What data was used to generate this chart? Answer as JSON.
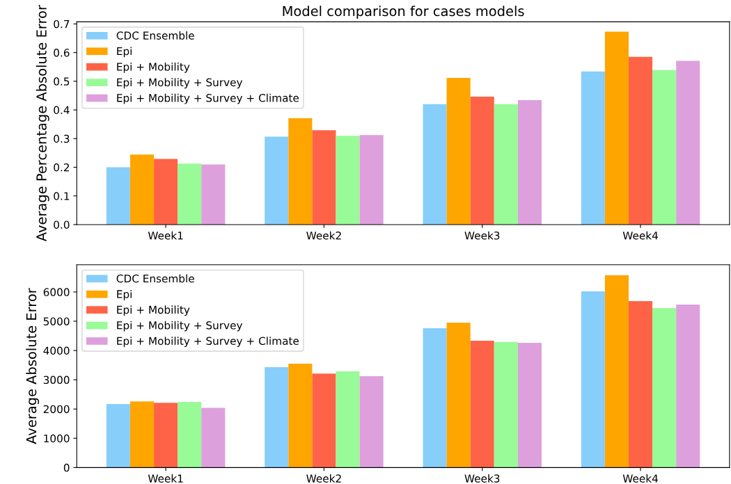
{
  "chart_data": [
    {
      "type": "bar",
      "title": "Model comparison for cases models",
      "ylabel": "Average Percentage Absolute Error",
      "categories": [
        "Week1",
        "Week2",
        "Week3",
        "Week4"
      ],
      "series": [
        {
          "name": "CDC Ensemble",
          "color": "#87cefa",
          "values": [
            0.2,
            0.307,
            0.42,
            0.534
          ]
        },
        {
          "name": "Epi",
          "color": "#ffa500",
          "values": [
            0.244,
            0.371,
            0.512,
            0.673
          ]
        },
        {
          "name": "Epi + Mobility",
          "color": "#ff6347",
          "values": [
            0.229,
            0.329,
            0.446,
            0.585
          ]
        },
        {
          "name": "Epi + Mobility + Survey",
          "color": "#98fb98",
          "values": [
            0.213,
            0.31,
            0.42,
            0.539
          ]
        },
        {
          "name": "Epi + Mobility + Survey + Climate",
          "color": "#dda0dd",
          "values": [
            0.21,
            0.312,
            0.434,
            0.571
          ]
        }
      ],
      "ylim": [
        0,
        0.7075
      ],
      "yticks": [
        {
          "value": 0,
          "label": "0.0"
        },
        0.1,
        0.2,
        0.3,
        0.4,
        0.5,
        0.6,
        0.7
      ],
      "legend": "top left"
    },
    {
      "type": "bar",
      "ylabel": "Average Absolute Error",
      "categories": [
        "Week1",
        "Week2",
        "Week3",
        "Week4"
      ],
      "series": [
        {
          "name": "CDC Ensemble",
          "color": "#87cefa",
          "values": [
            2170,
            3430,
            4760,
            6020
          ]
        },
        {
          "name": "Epi",
          "color": "#ffa500",
          "values": [
            2260,
            3550,
            4950,
            6570
          ]
        },
        {
          "name": "Epi + Mobility",
          "color": "#ff6347",
          "values": [
            2210,
            3210,
            4330,
            5690
          ]
        },
        {
          "name": "Epi + Mobility + Survey",
          "color": "#98fb98",
          "values": [
            2240,
            3290,
            4290,
            5450
          ]
        },
        {
          "name": "Epi + Mobility + Survey + Climate",
          "color": "#dda0dd",
          "values": [
            2040,
            3120,
            4260,
            5570
          ]
        }
      ],
      "ylim": [
        0,
        6930
      ],
      "yticks": [
        0,
        1000,
        2000,
        3000,
        4000,
        5000,
        6000
      ],
      "legend": "top left"
    }
  ]
}
